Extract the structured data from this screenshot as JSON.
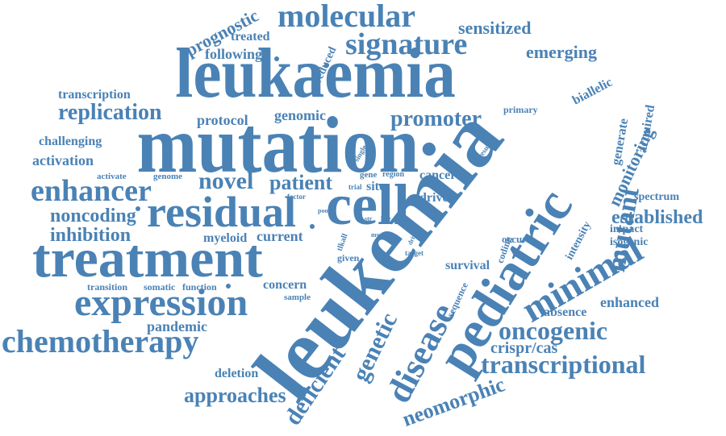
{
  "color": "#4a82b5",
  "words": {
    "leukaemia": "leukaemia",
    "mutation": "mutation",
    "leukemia": "leukemia",
    "treatment": "treatment",
    "cell": "cell",
    "residual": "residual",
    "expression": "expression",
    "molecular": "molecular",
    "signature": "signature",
    "pediatric": "pediatric",
    "minimal": "minimal",
    "chemotherapy": "chemotherapy",
    "enhancer": "enhancer",
    "disease": "disease",
    "oncogenic": "oncogenic",
    "transcriptional": "transcriptional",
    "genetic": "genetic",
    "mutant": "mutant",
    "replication": "replication",
    "promoter": "promoter",
    "novel": "novel",
    "patient": "patient",
    "noncoding": "noncoding",
    "inhibition": "inhibition",
    "established": "established",
    "approaches": "approaches",
    "deficient": "deficient",
    "neomorphic": "neomorphic",
    "monitoring": "monitoring",
    "crisprcas": "crispr/cas",
    "emerging": "emerging",
    "sensitized": "sensitized",
    "prognostic": "prognostic",
    "following": "following",
    "treated": "treated",
    "reduced": "reduced",
    "transcription": "transcription",
    "protocol": "protocol",
    "genomic": "genomic",
    "challenging": "challenging",
    "activation": "activation",
    "biallelic": "biallelic",
    "primary": "primary",
    "generate": "generate",
    "acquired": "acquired",
    "spectrum": "spectrum",
    "impact": "impact",
    "isogenic": "isogenic",
    "intensity": "intensity",
    "enhanced": "enhanced",
    "absence": "absence",
    "pandemic": "pandemic",
    "deletion": "deletion",
    "concern": "concern",
    "myeloid": "myeloid",
    "current": "current",
    "survival": "survival",
    "sequence": "sequence",
    "coding": "coding",
    "occur": "occur",
    "drive": "drive",
    "cancer": "cancer",
    "site": "site",
    "gene": "gene",
    "region": "region",
    "trial": "trial",
    "single": "single",
    "result": "result",
    "activate": "activate",
    "genome": "genome",
    "factor": "factor",
    "poor": "poor",
    "str": "str",
    "line": "line",
    "tlkall": "tlkall",
    "mycn": "mycn",
    "driver": "driver",
    "target": "target",
    "given": "given",
    "transition": "transition",
    "somatic": "somatic",
    "function": "function",
    "sample": "sample"
  }
}
